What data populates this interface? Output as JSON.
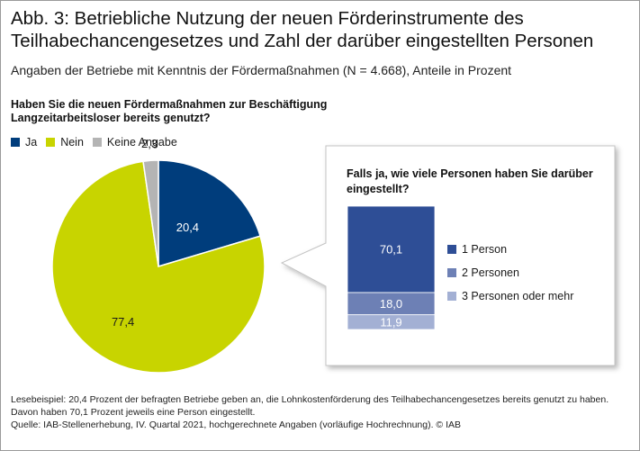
{
  "title": "Abb. 3: Betriebliche Nutzung der neuen Förderinstrumente des Teilhabechancengesetzes und Zahl der darüber eingestellten Personen",
  "subtitle": "Angaben der Betriebe mit Kenntnis der Fördermaßnahmen (N = 4.668), Anteile in Prozent",
  "footer": {
    "reading_example": "Lesebeispiel: 20,4 Prozent der befragten Betriebe geben an, die Lohnkostenförderung des Teilhabechancengesetzes bereits genutzt zu haben. Davon haben 70,1 Prozent jeweils eine Person eingestellt.",
    "source": "Quelle: IAB-Stellenerhebung, IV. Quartal 2021, hochgerechnete Angaben (vorläufige Hochrechnung).  © IAB"
  },
  "chart_data": [
    {
      "type": "pie",
      "question": "Haben Sie die neuen Fördermaßnahmen zur Beschäftigung Langzeitarbeitsloser bereits genutzt?",
      "categories": [
        "Ja",
        "Nein",
        "Keine Angabe"
      ],
      "values": [
        20.4,
        77.4,
        2.3
      ],
      "value_labels": [
        "20,4",
        "77,4",
        "2,3"
      ],
      "colors": [
        "#003d7c",
        "#c8d400",
        "#b4b4b4"
      ],
      "start_angle_deg": 90,
      "direction": "clockwise",
      "legend_position": "top-left"
    },
    {
      "type": "bar",
      "stacked": true,
      "question": "Falls ja, wie viele Personen haben Sie darüber eingestellt?",
      "categories": [
        "1 Person",
        "2 Personen",
        "3 Personen oder mehr"
      ],
      "values": [
        70.1,
        18.0,
        11.9
      ],
      "value_labels": [
        "70,1",
        "18,0",
        "11,9"
      ],
      "colors": [
        "#2e4e96",
        "#6d80b5",
        "#a3b0d4"
      ],
      "legend_position": "right"
    }
  ]
}
